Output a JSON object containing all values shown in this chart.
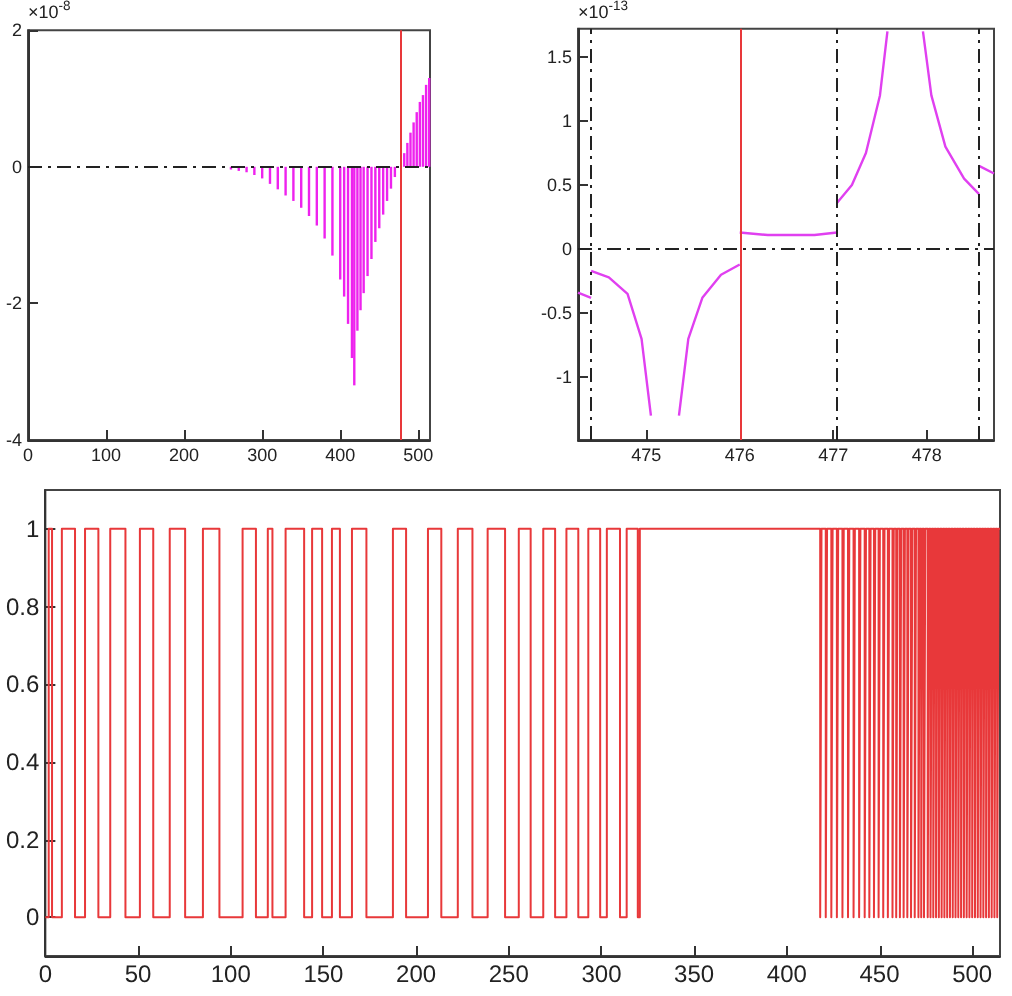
{
  "chart_data": [
    {
      "type": "bar",
      "ylabel": "×10$^{-8}$",
      "marker": "none",
      "series": [
        {
          "color": "#ee22ee",
          "x": [
            260,
            270,
            280,
            290,
            300,
            310,
            320,
            330,
            340,
            350,
            360,
            370,
            380,
            390,
            400,
            405,
            410,
            415,
            418,
            422,
            426,
            430,
            435,
            440,
            445,
            450,
            455,
            460,
            465,
            470,
            482,
            486,
            490,
            494,
            498,
            502,
            506,
            510,
            514
          ],
          "values": [
            -0.04,
            -0.06,
            -0.08,
            -0.12,
            -0.17,
            -0.25,
            -0.33,
            -0.42,
            -0.5,
            -0.6,
            -0.72,
            -0.86,
            -1.05,
            -1.3,
            -1.65,
            -1.9,
            -2.3,
            -2.8,
            -3.2,
            -2.4,
            -2.1,
            -1.85,
            -1.6,
            -1.35,
            -1.1,
            -0.9,
            -0.7,
            -0.5,
            -0.32,
            -0.15,
            0.2,
            0.35,
            0.5,
            0.65,
            0.8,
            0.95,
            1.05,
            1.2,
            1.3
          ]
        }
      ],
      "xlim": [
        0,
        515
      ],
      "xticks": [
        0,
        100,
        200,
        300,
        400,
        500
      ],
      "ylim": [
        -4,
        2
      ],
      "yticks": [
        -4,
        -2,
        0,
        2
      ],
      "ref_lines": [
        {
          "axis": "x",
          "value": 476,
          "color": "#e8383a",
          "line_style": "solid"
        },
        {
          "axis": "y",
          "value": 0,
          "color": "#222222",
          "line_style": "dashed"
        }
      ]
    },
    {
      "type": "line",
      "ylabel": "×10$^{-13}$",
      "marker": "none",
      "series": [
        {
          "color": "#e040f0",
          "x": [
            474.27,
            474.41
          ],
          "values": [
            -0.34,
            -0.38
          ]
        },
        {
          "color": "#e040f0",
          "x": [
            474.41,
            474.6,
            474.8,
            474.95,
            475.05
          ],
          "values": [
            -0.17,
            -0.22,
            -0.35,
            -0.7,
            -1.3
          ]
        },
        {
          "color": "#e040f0",
          "x": [
            475.35,
            475.45,
            475.6,
            475.8,
            476
          ],
          "values": [
            -1.3,
            -0.7,
            -0.38,
            -0.2,
            -0.12
          ]
        },
        {
          "color": "#e040f0",
          "x": [
            476,
            476.3,
            476.5,
            476.8,
            477.04
          ],
          "values": [
            0.13,
            0.11,
            0.11,
            0.11,
            0.13
          ]
        },
        {
          "color": "#e040f0",
          "x": [
            477.04,
            477.2,
            477.35,
            477.5,
            477.58
          ],
          "values": [
            0.36,
            0.5,
            0.75,
            1.2,
            1.7
          ]
        },
        {
          "color": "#e040f0",
          "x": [
            477.96,
            478.05,
            478.2,
            478.4,
            478.56
          ],
          "values": [
            1.7,
            1.2,
            0.8,
            0.55,
            0.43
          ]
        },
        {
          "color": "#e040f0",
          "x": [
            478.56,
            478.72
          ],
          "values": [
            0.65,
            0.59
          ]
        }
      ],
      "xlim": [
        474.27,
        478.72
      ],
      "xticks": [
        475,
        476,
        477,
        478
      ],
      "ylim": [
        -1.49,
        1.72
      ],
      "yticks": [
        -1,
        -0.5,
        0,
        0.5,
        1,
        1.5
      ],
      "ref_lines": [
        {
          "axis": "x",
          "value": 474.41,
          "color": "#222222",
          "line_style": "dashed"
        },
        {
          "axis": "x",
          "value": 476,
          "color": "#e8383a",
          "line_style": "solid"
        },
        {
          "axis": "x",
          "value": 477.04,
          "color": "#222222",
          "line_style": "dashed"
        },
        {
          "axis": "x",
          "value": 478.56,
          "color": "#222222",
          "line_style": "dashed"
        },
        {
          "axis": "y",
          "value": 0,
          "color": "#222222",
          "line_style": "dashed"
        }
      ]
    },
    {
      "type": "step",
      "marker": "none",
      "series": [
        {
          "color": "#e8383a",
          "x": [
            0,
            1.8,
            3.6,
            8.9,
            16,
            21.4,
            28.6,
            35,
            43.2,
            51,
            58.2,
            67.1,
            75.4,
            85,
            93.9,
            106.4,
            113.6,
            120,
            122.5,
            129.6,
            139.6,
            143.9,
            149.3,
            154.6,
            158.9,
            165.4,
            173.2,
            187.5,
            194.6,
            206.4,
            213.6,
            222.5,
            230.4,
            238.6,
            248,
            255.4,
            261.8,
            268.6,
            275,
            281.1,
            287.5,
            292.9,
            299.3,
            302.9,
            310,
            313.6,
            319.6,
            320.7,
            418,
            418.7,
            421,
            421.7,
            424,
            424.7,
            427,
            427.7,
            430,
            430.7,
            433,
            433.7,
            436,
            436.7,
            439,
            439.7,
            442,
            442.7,
            444.5,
            445.2,
            447,
            447.7,
            449.5,
            450.2,
            452,
            452.7,
            454.5,
            455.2,
            457,
            457.7,
            459,
            459.7,
            461,
            461.7,
            463,
            463.7,
            465,
            465.7,
            467,
            467.7,
            469,
            469.7,
            471,
            471.7,
            472.5,
            473.2,
            474,
            474.7,
            476,
            476.7,
            477.5,
            478.2,
            479,
            479.7,
            480.5,
            481.2,
            482,
            482.7,
            483.5,
            484.2,
            485,
            485.7,
            486.5,
            487.2,
            488,
            488.7,
            489.5,
            490.2,
            491,
            491.7,
            492.5,
            493.2,
            494,
            494.7,
            495.5,
            496.2,
            497,
            497.7,
            498.5,
            499.2,
            500,
            500.7,
            501.5,
            502.2,
            503,
            503.7,
            504.5,
            505.2,
            506,
            506.7,
            507.5,
            508.2,
            509,
            509.7,
            510.5,
            511.2,
            512,
            512.7,
            513.5,
            514.2,
            515
          ],
          "values": [
            0,
            1,
            0,
            1,
            0,
            1,
            0,
            1,
            0,
            1,
            0,
            1,
            0,
            1,
            0,
            1,
            0,
            1,
            0,
            1,
            0,
            1,
            0,
            1,
            0,
            1,
            0,
            1,
            0,
            1,
            0,
            1,
            0,
            1,
            0,
            1,
            0,
            1,
            0,
            1,
            0,
            1,
            0,
            1,
            0,
            1,
            0,
            1,
            0,
            1,
            0,
            1,
            0,
            1,
            0,
            1,
            0,
            1,
            0,
            1,
            0,
            1,
            0,
            1,
            0,
            1,
            0,
            1,
            0,
            1,
            0,
            1,
            0,
            1,
            0,
            1,
            0,
            1,
            0,
            1,
            0,
            1,
            0,
            1,
            0,
            1,
            0,
            1,
            0,
            1,
            0,
            1,
            0,
            1,
            0,
            1,
            0,
            1,
            0,
            1,
            0,
            1,
            0,
            1,
            0,
            1,
            0,
            1,
            0,
            1,
            0,
            1,
            0,
            1,
            0,
            1,
            0,
            1,
            0,
            1,
            0,
            1,
            0,
            1,
            0,
            1,
            0,
            1,
            0,
            1,
            0,
            1,
            0,
            1,
            0,
            1,
            0,
            1,
            0,
            1,
            0,
            1,
            0,
            1,
            0,
            1,
            0,
            1,
            1
          ]
        }
      ],
      "xlim": [
        0,
        515
      ],
      "xticks": [
        0,
        50,
        100,
        150,
        200,
        250,
        300,
        350,
        400,
        450,
        500
      ],
      "ylim": [
        -0.1,
        1.1
      ],
      "yticks": [
        0,
        0.2,
        0.4,
        0.6,
        0.8,
        1
      ]
    }
  ]
}
